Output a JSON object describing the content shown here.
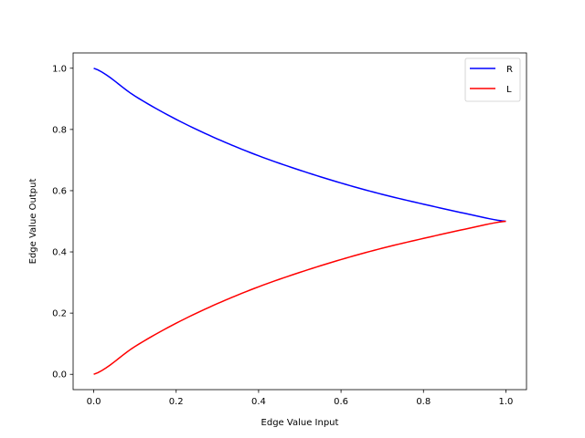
{
  "chart_data": {
    "type": "line",
    "title": "",
    "xlabel": "Edge Value Input",
    "ylabel": "Edge Value Output",
    "xlim": [
      -0.05,
      1.05
    ],
    "ylim": [
      -0.05,
      1.05
    ],
    "xticks": [
      0.0,
      0.2,
      0.4,
      0.6,
      0.8,
      1.0
    ],
    "yticks": [
      0.0,
      0.2,
      0.4,
      0.6,
      0.8,
      1.0
    ],
    "xtick_labels": [
      "0.0",
      "0.2",
      "0.4",
      "0.6",
      "0.8",
      "1.0"
    ],
    "ytick_labels": [
      "0.0",
      "0.2",
      "0.4",
      "0.6",
      "0.8",
      "1.0"
    ],
    "grid": false,
    "legend_position": "top-right",
    "x": [
      0.0,
      0.1,
      0.2,
      0.3,
      0.4,
      0.5,
      0.6,
      0.7,
      0.8,
      0.9,
      1.0
    ],
    "series": [
      {
        "name": "R",
        "color": "#0000ff",
        "values": [
          1.0,
          0.909,
          0.833,
          0.769,
          0.714,
          0.667,
          0.625,
          0.588,
          0.556,
          0.526,
          0.5
        ]
      },
      {
        "name": "L",
        "color": "#ff0000",
        "values": [
          0.0,
          0.091,
          0.167,
          0.231,
          0.286,
          0.333,
          0.375,
          0.412,
          0.444,
          0.474,
          0.5
        ]
      }
    ]
  }
}
